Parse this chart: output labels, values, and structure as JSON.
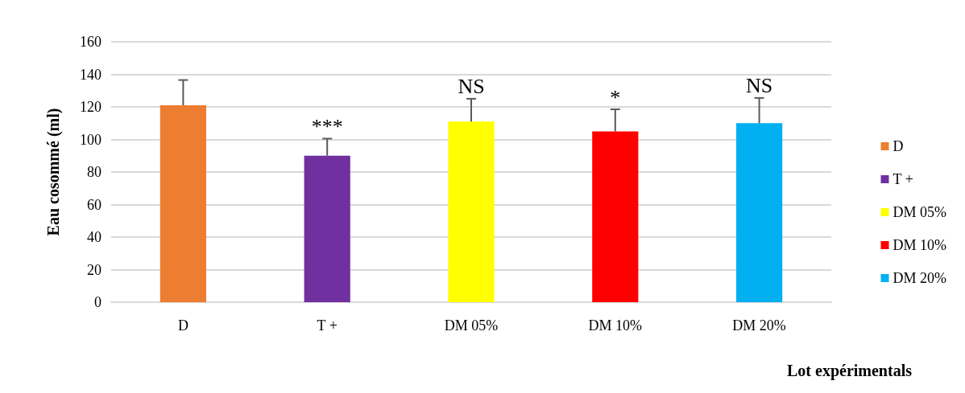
{
  "chart_data": {
    "type": "bar",
    "ylabel": "Eau cosommé (ml)",
    "xlabel": "Lot expérimentals",
    "categories": [
      "D",
      "T +",
      "DM 05%",
      "DM 10%",
      "DM 20%"
    ],
    "series": [
      {
        "name": "D",
        "color": "#ed7d31",
        "values": [
          121,
          null,
          null,
          null,
          null
        ],
        "errors": [
          [
            121,
            136.5
          ],
          null,
          null,
          null,
          null
        ]
      },
      {
        "name": "T +",
        "color": "#7030a0",
        "values": [
          null,
          90,
          null,
          null,
          null
        ],
        "errors": [
          null,
          [
            90,
            100.5
          ],
          null,
          null,
          null
        ]
      },
      {
        "name": "DM 05%",
        "color": "#ffff00",
        "values": [
          null,
          null,
          111,
          null,
          null
        ],
        "errors": [
          null,
          null,
          [
            111,
            125
          ],
          null,
          null
        ]
      },
      {
        "name": "DM 10%",
        "color": "#ff0000",
        "values": [
          null,
          null,
          null,
          105,
          null
        ],
        "errors": [
          null,
          null,
          null,
          [
            105,
            118.5
          ],
          null
        ]
      },
      {
        "name": "DM 20%",
        "color": "#00b0f0",
        "values": [
          null,
          null,
          null,
          null,
          110
        ],
        "errors": [
          null,
          null,
          null,
          null,
          [
            110,
            125.5
          ]
        ]
      }
    ],
    "stacked": true,
    "ylim": [
      0,
      160
    ],
    "yticks": [
      0,
      20,
      40,
      60,
      80,
      100,
      120,
      140,
      160
    ],
    "grid": "y",
    "legend": "right",
    "annotations": [
      {
        "text": "***",
        "x": "T +",
        "y": 90
      },
      {
        "text": "NS",
        "x": "DM 05%",
        "y": 111
      },
      {
        "text": "*",
        "x": "DM 10%",
        "y": 105
      },
      {
        "text": "NS",
        "x": "DM 20%",
        "y": 110
      }
    ]
  }
}
